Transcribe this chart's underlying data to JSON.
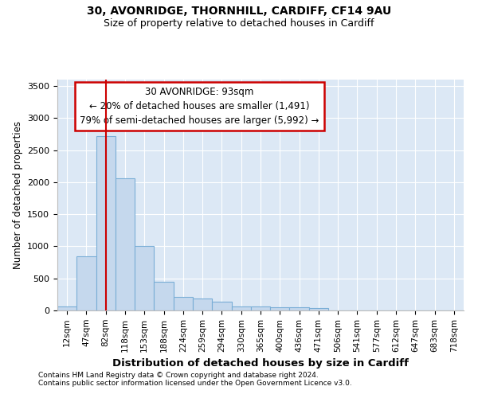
{
  "title1": "30, AVONRIDGE, THORNHILL, CARDIFF, CF14 9AU",
  "title2": "Size of property relative to detached houses in Cardiff",
  "xlabel": "Distribution of detached houses by size in Cardiff",
  "ylabel": "Number of detached properties",
  "categories": [
    "12sqm",
    "47sqm",
    "82sqm",
    "118sqm",
    "153sqm",
    "188sqm",
    "224sqm",
    "259sqm",
    "294sqm",
    "330sqm",
    "365sqm",
    "400sqm",
    "436sqm",
    "471sqm",
    "506sqm",
    "541sqm",
    "577sqm",
    "612sqm",
    "647sqm",
    "683sqm",
    "718sqm"
  ],
  "bar_heights": [
    65,
    845,
    2720,
    2060,
    1010,
    450,
    205,
    185,
    140,
    65,
    60,
    50,
    50,
    35,
    5,
    5,
    5,
    5,
    5,
    5,
    5
  ],
  "bar_color": "#c5d8ed",
  "bar_edge_color": "#7aaed6",
  "red_line_x": 2,
  "annotation_text": "30 AVONRIDGE: 93sqm\n← 20% of detached houses are smaller (1,491)\n79% of semi-detached houses are larger (5,992) →",
  "annotation_box_color": "#ffffff",
  "annotation_box_edge": "#cc0000",
  "ylim": [
    0,
    3600
  ],
  "yticks": [
    0,
    500,
    1000,
    1500,
    2000,
    2500,
    3000,
    3500
  ],
  "footer1": "Contains HM Land Registry data © Crown copyright and database right 2024.",
  "footer2": "Contains public sector information licensed under the Open Government Licence v3.0.",
  "bg_color": "#ffffff",
  "plot_bg_color": "#dce8f5"
}
